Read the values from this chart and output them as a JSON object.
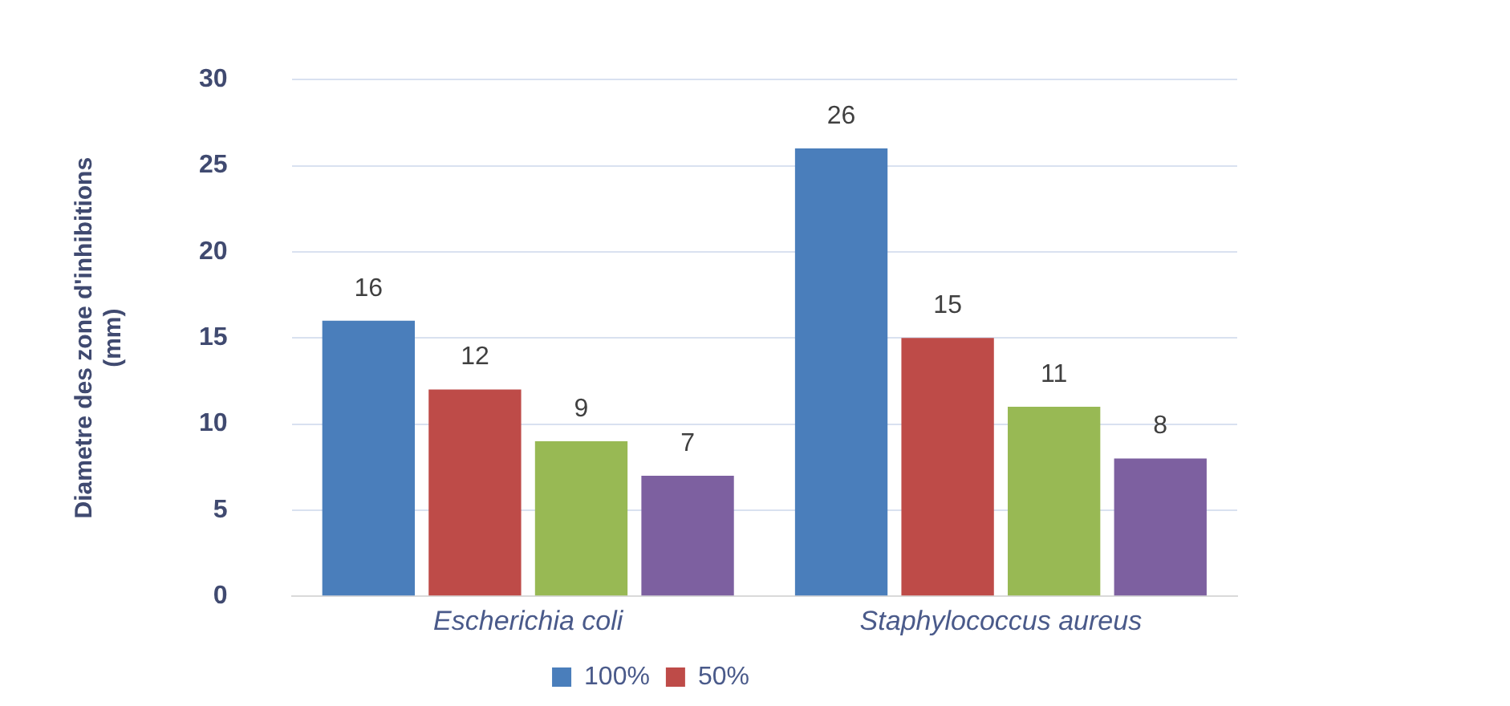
{
  "chart_data": {
    "type": "bar",
    "ylabel": "Diametre des zone d'inhibitions\n(mm)",
    "categories": [
      "Escherichia coli",
      "Staphylococcus aureus"
    ],
    "series": [
      {
        "name": "100%",
        "color": "#4a7ebb",
        "values": [
          16,
          26
        ]
      },
      {
        "name": "50%",
        "color": "#be4b48",
        "values": [
          12,
          15
        ]
      },
      {
        "color": "#98b954",
        "values": [
          9,
          11
        ]
      },
      {
        "color": "#7d60a0",
        "values": [
          7,
          8
        ]
      }
    ],
    "ylim": [
      0,
      30
    ],
    "yticks": [
      0,
      5,
      10,
      15,
      20,
      25,
      30
    ],
    "grid": "y",
    "legend": "bottom",
    "data_labels": true
  }
}
